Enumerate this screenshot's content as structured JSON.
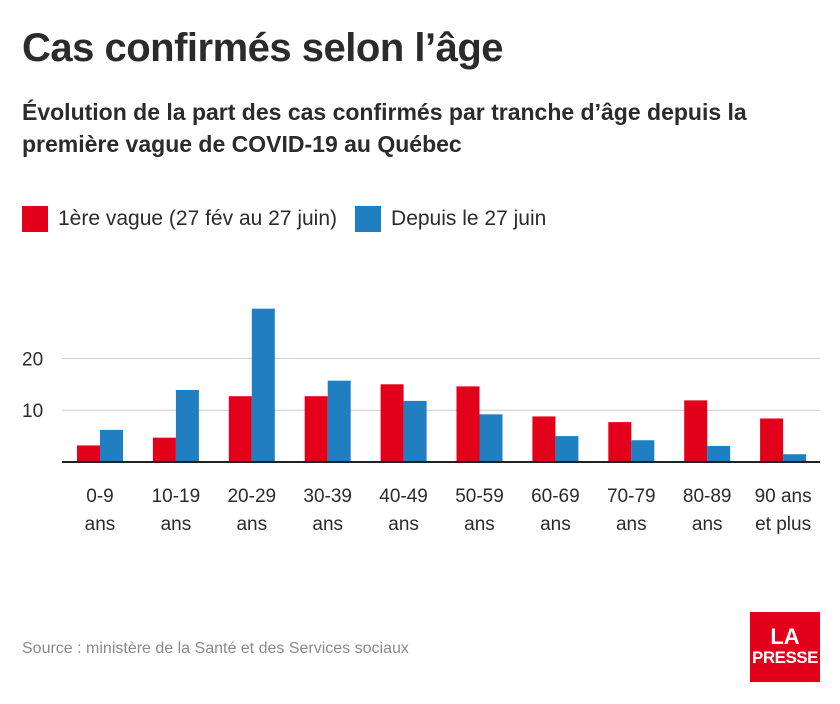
{
  "title": "Cas confirmés selon l’âge",
  "subtitle": "Évolution de la part des cas confirmés par tranche d’âge depuis la première vague de COVID-19 au Québec",
  "source": "Source : ministère de la Santé et des Services sociaux",
  "logo": {
    "line1": "LA",
    "line2": "PRESSE"
  },
  "colors": {
    "series1": "#e2001a",
    "series2": "#1f7fc0",
    "axis": "#222222",
    "grid": "#cccccc",
    "text": "#2b2b2b"
  },
  "chart_data": {
    "type": "bar",
    "title": "Cas confirmés selon l’âge",
    "subtitle": "Évolution de la part des cas confirmés par tranche d’âge depuis la première vague de COVID-19 au Québec",
    "categories": [
      [
        "0-9",
        "ans"
      ],
      [
        "10-19",
        "ans"
      ],
      [
        "20-29",
        "ans"
      ],
      [
        "30-39",
        "ans"
      ],
      [
        "40-49",
        "ans"
      ],
      [
        "50-59",
        "ans"
      ],
      [
        "60-69",
        "ans"
      ],
      [
        "70-79",
        "ans"
      ],
      [
        "80-89",
        "ans"
      ],
      [
        "90 ans",
        "et plus"
      ]
    ],
    "series": [
      {
        "name": "1ère vague (27 fév au 27 juin)",
        "color": "#e2001a",
        "values": [
          3.2,
          4.7,
          12.7,
          12.7,
          15.0,
          14.6,
          8.8,
          7.7,
          11.9,
          8.4
        ]
      },
      {
        "name": "Depuis le 27 juin",
        "color": "#1f7fc0",
        "values": [
          6.2,
          13.9,
          29.6,
          15.7,
          11.8,
          9.2,
          5.0,
          4.2,
          3.1,
          1.5
        ]
      }
    ],
    "yticks": [
      10,
      20
    ],
    "ylim": [
      0,
      30
    ],
    "grid": true,
    "legend_position": "top-left",
    "xlabel": "",
    "ylabel": ""
  }
}
